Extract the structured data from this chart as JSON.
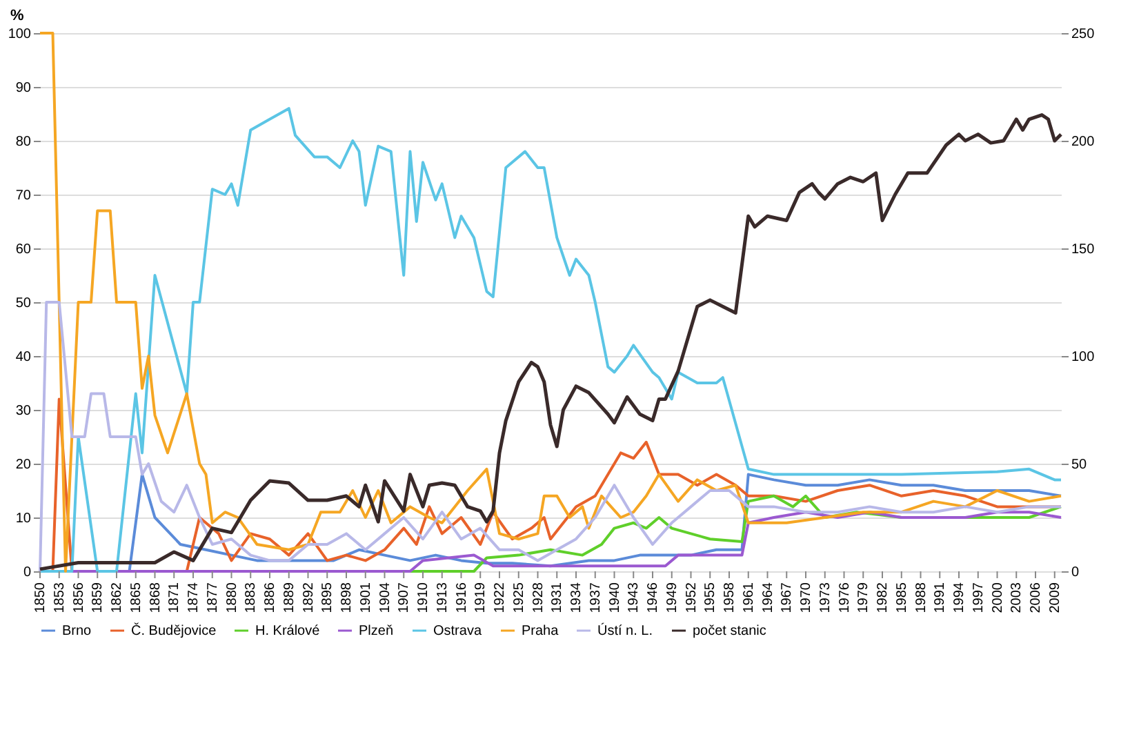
{
  "chart_data": {
    "type": "line",
    "ylabel": "%",
    "xlim": [
      1850,
      2010
    ],
    "ylim": [
      0,
      100
    ],
    "yticks": [
      0,
      10,
      20,
      30,
      40,
      50,
      60,
      70,
      80,
      90,
      100
    ],
    "y2lim": [
      0,
      250
    ],
    "y2ticks": [
      0,
      50,
      100,
      150,
      200,
      250
    ],
    "xticks": [
      1850,
      1853,
      1856,
      1859,
      1862,
      1865,
      1868,
      1871,
      1874,
      1877,
      1880,
      1883,
      1886,
      1889,
      1892,
      1895,
      1898,
      1901,
      1904,
      1907,
      1910,
      1913,
      1916,
      1919,
      1922,
      1925,
      1928,
      1931,
      1934,
      1937,
      1940,
      1943,
      1946,
      1949,
      1952,
      1955,
      1958,
      1961,
      1964,
      1967,
      1970,
      1973,
      1976,
      1979,
      1982,
      1985,
      1988,
      1991,
      1994,
      1997,
      2000,
      2003,
      2006,
      2009
    ],
    "grid": "y",
    "legend": "bottom",
    "series": [
      {
        "name": "Brno",
        "color": "#5b8bd9",
        "x": [
          1850,
          1864,
          1866,
          1868,
          1872,
          1876,
          1880,
          1884,
          1888,
          1892,
          1896,
          1900,
          1904,
          1908,
          1912,
          1916,
          1920,
          1924,
          1930,
          1936,
          1940,
          1944,
          1948,
          1952,
          1956,
          1960,
          1961,
          1965,
          1970,
          1975,
          1980,
          1985,
          1990,
          1995,
          2000,
          2005,
          2010
        ],
        "values": [
          0,
          0,
          18,
          10,
          5,
          4,
          3,
          2,
          2,
          2,
          2,
          4,
          3,
          2,
          3,
          2,
          1.5,
          1.5,
          1,
          2,
          2,
          3,
          3,
          3,
          4,
          4,
          18,
          17,
          16,
          16,
          17,
          16,
          16,
          15,
          15,
          15,
          14
        ]
      },
      {
        "name": "Č. Budějovice",
        "color": "#e8622a",
        "x": [
          1850,
          1852,
          1853,
          1855,
          1873,
          1875,
          1878,
          1880,
          1883,
          1886,
          1889,
          1892,
          1895,
          1898,
          1901,
          1904,
          1907,
          1909,
          1911,
          1913,
          1916,
          1919,
          1921,
          1924,
          1927,
          1929,
          1930,
          1934,
          1937,
          1941,
          1943,
          1945,
          1947,
          1950,
          1953,
          1956,
          1959,
          1961,
          1965,
          1970,
          1975,
          1980,
          1985,
          1990,
          1995,
          2000,
          2005,
          2010
        ],
        "values": [
          0,
          0,
          32,
          0,
          0,
          10,
          7,
          2,
          7,
          6,
          3,
          7,
          2,
          3,
          2,
          4,
          8,
          5,
          12,
          7,
          10,
          5,
          11,
          6,
          8,
          10,
          6,
          12,
          14,
          22,
          21,
          24,
          18,
          18,
          16,
          18,
          16,
          14,
          14,
          13,
          15,
          16,
          14,
          15,
          14,
          12,
          12,
          12
        ]
      },
      {
        "name": "H. Králové",
        "color": "#5fcf2a",
        "x": [
          1850,
          1918,
          1920,
          1925,
          1930,
          1935,
          1938,
          1940,
          1943,
          1945,
          1947,
          1949,
          1955,
          1960,
          1961,
          1965,
          1968,
          1970,
          1973,
          1978,
          1985,
          1990,
          1995,
          2000,
          2005,
          2010
        ],
        "values": [
          0,
          0,
          2.5,
          3,
          4,
          3,
          5,
          8,
          9,
          8,
          10,
          8,
          6,
          5.5,
          13,
          14,
          12,
          14,
          10,
          11,
          10,
          10,
          10,
          10,
          10,
          12
        ]
      },
      {
        "name": "Plzeň",
        "color": "#9b59d0",
        "x": [
          1850,
          1908,
          1910,
          1918,
          1921,
          1931,
          1940,
          1948,
          1950,
          1960,
          1961,
          1965,
          1970,
          1975,
          1980,
          1985,
          1990,
          1995,
          2000,
          2005,
          2010
        ],
        "values": [
          0,
          0,
          2,
          3,
          1,
          1,
          1,
          1,
          3,
          3,
          9,
          10,
          11,
          10,
          11,
          10,
          10,
          10,
          11,
          11,
          10
        ]
      },
      {
        "name": "Ostrava",
        "color": "#5bc5e5",
        "x": [
          1850,
          1855,
          1856,
          1859,
          1862,
          1865,
          1866,
          1868,
          1873,
          1874,
          1875,
          1877,
          1879,
          1880,
          1881,
          1883,
          1886,
          1889,
          1890,
          1893,
          1895,
          1897,
          1899,
          1900,
          1901,
          1903,
          1905,
          1907,
          1908,
          1909,
          1910,
          1912,
          1913,
          1915,
          1916,
          1918,
          1920,
          1921,
          1923,
          1926,
          1928,
          1929,
          1931,
          1933,
          1934,
          1936,
          1937,
          1939,
          1940,
          1942,
          1943,
          1946,
          1947,
          1949,
          1950,
          1953,
          1956,
          1957,
          1961,
          1965,
          1975,
          1985,
          2000,
          2005,
          2009,
          2010
        ],
        "values": [
          0,
          0,
          25,
          0,
          0,
          33,
          22,
          55,
          33,
          50,
          50,
          71,
          70,
          72,
          68,
          82,
          84,
          86,
          81,
          77,
          77,
          75,
          80,
          78,
          68,
          79,
          78,
          55,
          78,
          65,
          76,
          69,
          72,
          62,
          66,
          62,
          52,
          51,
          75,
          78,
          75,
          75,
          62,
          55,
          58,
          55,
          50,
          38,
          37,
          40,
          42,
          37,
          36,
          32,
          37,
          35,
          35,
          36,
          19,
          18,
          18,
          18,
          18.5,
          19,
          17,
          17
        ]
      },
      {
        "name": "Praha",
        "color": "#f5a623",
        "x": [
          1850,
          1852,
          1853,
          1854,
          1856,
          1858,
          1859,
          1861,
          1862,
          1865,
          1866,
          1867,
          1868,
          1870,
          1873,
          1875,
          1876,
          1877,
          1879,
          1881,
          1884,
          1889,
          1892,
          1894,
          1897,
          1899,
          1901,
          1903,
          1905,
          1908,
          1911,
          1913,
          1915,
          1917,
          1920,
          1922,
          1925,
          1928,
          1929,
          1931,
          1933,
          1935,
          1936,
          1938,
          1941,
          1943,
          1945,
          1947,
          1950,
          1953,
          1956,
          1959,
          1961,
          1967,
          1973,
          1979,
          1985,
          1990,
          1995,
          2000,
          2005,
          2010
        ],
        "values": [
          100,
          100,
          50,
          0,
          50,
          50,
          67,
          67,
          50,
          50,
          34,
          40,
          29,
          22,
          33,
          20,
          18,
          9,
          11,
          10,
          5,
          4,
          5,
          11,
          11,
          15,
          10,
          15,
          9,
          12,
          10,
          9,
          12,
          15,
          19,
          7,
          6,
          7,
          14,
          14,
          10,
          12,
          8,
          14,
          10,
          11,
          14,
          18,
          13,
          17,
          15,
          16,
          9,
          9,
          10,
          11,
          11,
          13,
          12,
          15,
          13,
          14
        ]
      },
      {
        "name": "Ústí n. L.",
        "color": "#b8b8e8",
        "x": [
          1850,
          1851,
          1853,
          1855,
          1857,
          1858,
          1860,
          1861,
          1865,
          1866,
          1867,
          1869,
          1871,
          1873,
          1875,
          1877,
          1880,
          1883,
          1886,
          1889,
          1892,
          1895,
          1898,
          1901,
          1904,
          1907,
          1910,
          1913,
          1916,
          1919,
          1922,
          1925,
          1928,
          1931,
          1934,
          1937,
          1940,
          1943,
          1946,
          1949,
          1952,
          1955,
          1958,
          1961,
          1965,
          1970,
          1975,
          1980,
          1985,
          1990,
          1995,
          2000,
          2005,
          2010
        ],
        "values": [
          0,
          50,
          50,
          25,
          25,
          33,
          33,
          25,
          25,
          18,
          20,
          13,
          11,
          16,
          10,
          5,
          6,
          3,
          2,
          2,
          5,
          5,
          7,
          4,
          7,
          10,
          6,
          11,
          6,
          8,
          4,
          4,
          2,
          4,
          6,
          10,
          16,
          10,
          5,
          9,
          12,
          15,
          15,
          12,
          12,
          11,
          11,
          12,
          11,
          11,
          12,
          11,
          12,
          12
        ]
      },
      {
        "name": "počet stanic",
        "color": "#3a2a2a",
        "axis": "y2",
        "x": [
          1850,
          1856,
          1862,
          1868,
          1871,
          1874,
          1877,
          1880,
          1883,
          1886,
          1889,
          1892,
          1895,
          1898,
          1900,
          1901,
          1903,
          1904,
          1907,
          1908,
          1910,
          1911,
          1913,
          1915,
          1917,
          1919,
          1920,
          1921,
          1922,
          1923,
          1925,
          1927,
          1928,
          1929,
          1930,
          1931,
          1932,
          1934,
          1936,
          1939,
          1940,
          1942,
          1944,
          1946,
          1947,
          1948,
          1950,
          1952,
          1953,
          1955,
          1957,
          1959,
          1961,
          1962,
          1964,
          1967,
          1969,
          1971,
          1972,
          1973,
          1975,
          1977,
          1979,
          1981,
          1982,
          1984,
          1986,
          1989,
          1992,
          1994,
          1995,
          1997,
          1999,
          2001,
          2003,
          2004,
          2005,
          2007,
          2008,
          2009,
          2010
        ],
        "values": [
          1,
          4,
          4,
          4,
          9,
          5,
          20,
          18,
          33,
          42,
          41,
          33,
          33,
          35,
          30,
          40,
          23,
          42,
          28,
          45,
          30,
          40,
          41,
          40,
          30,
          28,
          23,
          28,
          55,
          70,
          88,
          97,
          95,
          88,
          68,
          58,
          75,
          86,
          83,
          73,
          69,
          81,
          73,
          70,
          80,
          80,
          93,
          113,
          123,
          126,
          123,
          120,
          165,
          160,
          165,
          163,
          176,
          180,
          176,
          173,
          180,
          183,
          181,
          185,
          163,
          175,
          185,
          185,
          198,
          203,
          200,
          203,
          199,
          200,
          210,
          205,
          210,
          212,
          210,
          200,
          203
        ]
      }
    ]
  }
}
